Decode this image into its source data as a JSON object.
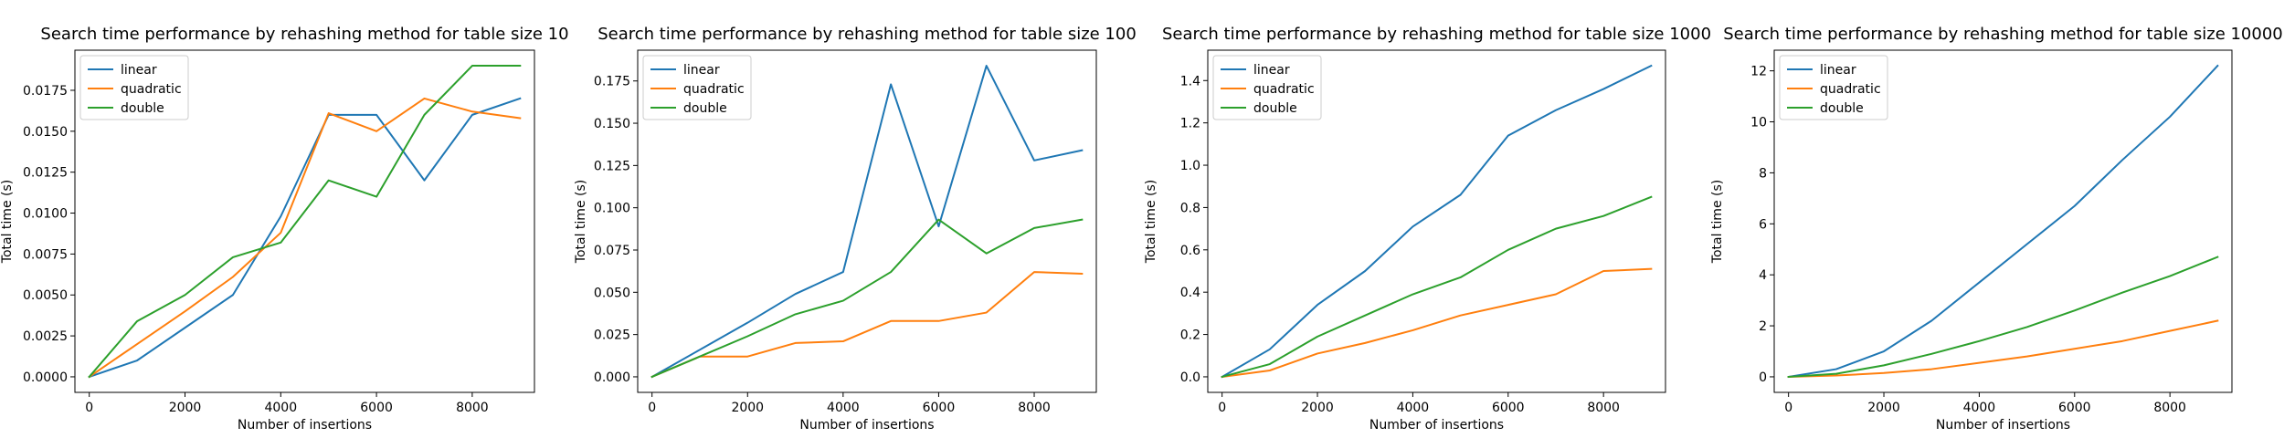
{
  "chart_data": [
    {
      "type": "line",
      "title": "Search time performance by rehashing method for table size 10",
      "xlabel": "Number of insertions",
      "ylabel": "Total time (s)",
      "x": [
        0,
        1000,
        2000,
        3000,
        4000,
        5000,
        6000,
        7000,
        8000,
        9000
      ],
      "xlim": [
        -300,
        9300
      ],
      "ylim": [
        -0.00095,
        0.01995
      ],
      "xticks": [
        0,
        2000,
        4000,
        6000,
        8000
      ],
      "yticks": [
        0.0,
        0.0025,
        0.005,
        0.0075,
        0.01,
        0.0125,
        0.015,
        0.0175
      ],
      "ytick_labels": [
        "0.0000",
        "0.0025",
        "0.0050",
        "0.0075",
        "0.0100",
        "0.0125",
        "0.0150",
        "0.0175"
      ],
      "legend": "top-left",
      "series": [
        {
          "name": "linear",
          "color": "#1f77b4",
          "values": [
            0.0,
            0.001,
            0.003,
            0.005,
            0.0098,
            0.016,
            0.016,
            0.012,
            0.016,
            0.017
          ]
        },
        {
          "name": "quadratic",
          "color": "#ff7f0e",
          "values": [
            0.0,
            0.002,
            0.004,
            0.0061,
            0.0088,
            0.0161,
            0.015,
            0.017,
            0.0162,
            0.0158
          ]
        },
        {
          "name": "double",
          "color": "#2ca02c",
          "values": [
            0.0,
            0.0034,
            0.005,
            0.0073,
            0.0082,
            0.012,
            0.011,
            0.016,
            0.019,
            0.019
          ]
        }
      ]
    },
    {
      "type": "line",
      "title": "Search time performance by rehashing method for table size 100",
      "xlabel": "Number of insertions",
      "ylabel": "Total time (s)",
      "x": [
        0,
        1000,
        2000,
        3000,
        4000,
        5000,
        6000,
        7000,
        8000,
        9000
      ],
      "xlim": [
        -300,
        9300
      ],
      "ylim": [
        -0.0092,
        0.1932
      ],
      "xticks": [
        0,
        2000,
        4000,
        6000,
        8000
      ],
      "yticks": [
        0.0,
        0.025,
        0.05,
        0.075,
        0.1,
        0.125,
        0.15,
        0.175
      ],
      "ytick_labels": [
        "0.000",
        "0.025",
        "0.050",
        "0.075",
        "0.100",
        "0.125",
        "0.150",
        "0.175"
      ],
      "legend": "top-left",
      "series": [
        {
          "name": "linear",
          "color": "#1f77b4",
          "values": [
            0.0,
            0.016,
            0.032,
            0.049,
            0.062,
            0.173,
            0.089,
            0.184,
            0.128,
            0.134
          ]
        },
        {
          "name": "quadratic",
          "color": "#ff7f0e",
          "values": [
            0.0,
            0.012,
            0.012,
            0.02,
            0.021,
            0.033,
            0.033,
            0.038,
            0.062,
            0.061
          ]
        },
        {
          "name": "double",
          "color": "#2ca02c",
          "values": [
            0.0,
            0.012,
            0.024,
            0.037,
            0.045,
            0.062,
            0.093,
            0.073,
            0.088,
            0.093
          ]
        }
      ]
    },
    {
      "type": "line",
      "title": "Search time performance by rehashing method for table size 1000",
      "xlabel": "Number of insertions",
      "ylabel": "Total time (s)",
      "x": [
        0,
        1000,
        2000,
        3000,
        4000,
        5000,
        6000,
        7000,
        8000,
        9000
      ],
      "xlim": [
        -300,
        9300
      ],
      "ylim": [
        -0.0735,
        1.5435
      ],
      "xticks": [
        0,
        2000,
        4000,
        6000,
        8000
      ],
      "yticks": [
        0.0,
        0.2,
        0.4,
        0.6,
        0.8,
        1.0,
        1.2,
        1.4
      ],
      "ytick_labels": [
        "0.0",
        "0.2",
        "0.4",
        "0.6",
        "0.8",
        "1.0",
        "1.2",
        "1.4"
      ],
      "legend": "top-left",
      "series": [
        {
          "name": "linear",
          "color": "#1f77b4",
          "values": [
            0.0,
            0.13,
            0.34,
            0.5,
            0.71,
            0.86,
            1.14,
            1.26,
            1.36,
            1.47
          ]
        },
        {
          "name": "quadratic",
          "color": "#ff7f0e",
          "values": [
            0.0,
            0.03,
            0.11,
            0.16,
            0.22,
            0.29,
            0.34,
            0.39,
            0.5,
            0.51
          ]
        },
        {
          "name": "double",
          "color": "#2ca02c",
          "values": [
            0.0,
            0.06,
            0.19,
            0.29,
            0.39,
            0.47,
            0.6,
            0.7,
            0.76,
            0.85
          ]
        }
      ]
    },
    {
      "type": "line",
      "title": "Search time performance by rehashing method for table size 10000",
      "xlabel": "Number of insertions",
      "ylabel": "Total time (s)",
      "x": [
        0,
        1000,
        2000,
        3000,
        4000,
        5000,
        6000,
        7000,
        8000,
        9000
      ],
      "xlim": [
        -300,
        9300
      ],
      "ylim": [
        -0.61,
        12.81
      ],
      "xticks": [
        0,
        2000,
        4000,
        6000,
        8000
      ],
      "yticks": [
        0,
        2,
        4,
        6,
        8,
        10,
        12
      ],
      "ytick_labels": [
        "0",
        "2",
        "4",
        "6",
        "8",
        "10",
        "12"
      ],
      "legend": "top-left",
      "series": [
        {
          "name": "linear",
          "color": "#1f77b4",
          "values": [
            0.0,
            0.3,
            1.0,
            2.2,
            3.7,
            5.2,
            6.7,
            8.5,
            10.2,
            12.2
          ]
        },
        {
          "name": "quadratic",
          "color": "#ff7f0e",
          "values": [
            0.0,
            0.05,
            0.15,
            0.3,
            0.55,
            0.8,
            1.1,
            1.4,
            1.8,
            2.2
          ]
        },
        {
          "name": "double",
          "color": "#2ca02c",
          "values": [
            0.0,
            0.12,
            0.45,
            0.9,
            1.4,
            1.95,
            2.6,
            3.3,
            3.95,
            4.7
          ]
        }
      ]
    }
  ]
}
